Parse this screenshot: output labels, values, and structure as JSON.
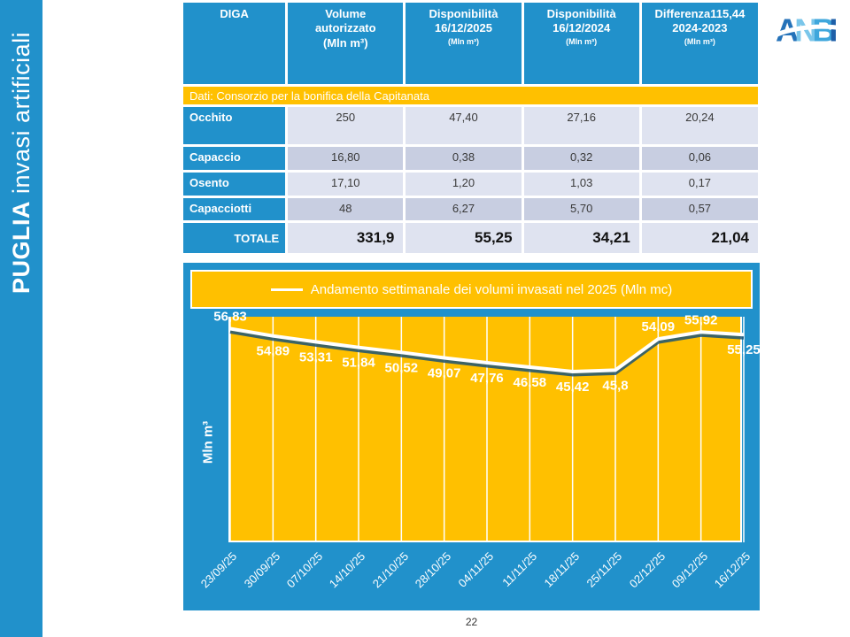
{
  "colors": {
    "blue": "#2191CB",
    "gold": "#FFC000",
    "row_light": "#DFE3F0",
    "row_dark": "#C8CEE1",
    "line": "#FFFFFF",
    "line_shadow": "#1A5276"
  },
  "sidebar": {
    "region": "PUGLIA",
    "subtitle": "invasi artificiali"
  },
  "logo": {
    "name": "ANBI",
    "letters": [
      {
        "ch": "A",
        "color": "#2472B9"
      },
      {
        "ch": "N",
        "color": "#7AC6EA"
      },
      {
        "ch": "B",
        "color": "#3FA7DC"
      },
      {
        "ch": "I",
        "color": "#1E5FA8"
      }
    ]
  },
  "table": {
    "headers": [
      {
        "title_lines": [
          "DIGA"
        ],
        "sub": ""
      },
      {
        "title_lines": [
          "Volume",
          "autorizzato",
          "(Mln m³)"
        ],
        "sub": ""
      },
      {
        "title_lines": [
          "Disponibilità",
          "16/12/2025"
        ],
        "sub": "(Mln m³)"
      },
      {
        "title_lines": [
          "Disponibilità",
          "16/12/2024"
        ],
        "sub": "(Mln m³)"
      },
      {
        "title_lines": [
          "Differenza115,44",
          "2024-2023"
        ],
        "sub": "(Mln m³)"
      }
    ],
    "banner": "Dati: Consorzio per la bonifica della Capitanata",
    "rows": [
      {
        "name": "Occhito",
        "values": [
          "250",
          "47,40",
          "27,16",
          "20,24"
        ]
      },
      {
        "name": "Capaccio",
        "values": [
          "16,80",
          "0,38",
          "0,32",
          "0,06"
        ]
      },
      {
        "name": "Osento",
        "values": [
          "17,10",
          "1,20",
          "1,03",
          "0,17"
        ]
      },
      {
        "name": "Capacciotti",
        "values": [
          "48",
          "6,27",
          "5,70",
          "0,57"
        ]
      }
    ],
    "total": {
      "label": "TOTALE",
      "values": [
        "331,9",
        "55,25",
        "34,21",
        "21,04"
      ]
    }
  },
  "chart_data": {
    "type": "line",
    "title": "Andamento settimanale dei volumi invasati nel 2025 (Mln mc)",
    "ylabel": "Mln m³",
    "x": [
      "23/09/25",
      "30/09/25",
      "07/10/25",
      "14/10/25",
      "21/10/25",
      "28/10/25",
      "04/11/25",
      "11/11/25",
      "18/11/25",
      "25/11/25",
      "02/12/25",
      "09/12/25",
      "16/12/25"
    ],
    "values": [
      56.83,
      54.89,
      53.31,
      51.84,
      50.52,
      49.07,
      47.76,
      46.58,
      45.42,
      45.8,
      54.09,
      55.92,
      55.25
    ],
    "point_labels": [
      "56,83",
      "54,89",
      "53,31",
      "51,84",
      "50,52",
      "49,07",
      "47,76",
      "46,58",
      "45,42",
      "45,8",
      "54,09",
      "55,92",
      "55,25"
    ],
    "label_position": [
      "above",
      "below",
      "below",
      "below",
      "below",
      "below",
      "below",
      "below",
      "below",
      "below",
      "above",
      "above",
      "below"
    ],
    "ylim": [
      0,
      60
    ],
    "grid": "vertical-only",
    "legend_position": "top",
    "line_color": "#FFFFFF",
    "plot_bg": "#FFC000"
  },
  "page_number": "22"
}
